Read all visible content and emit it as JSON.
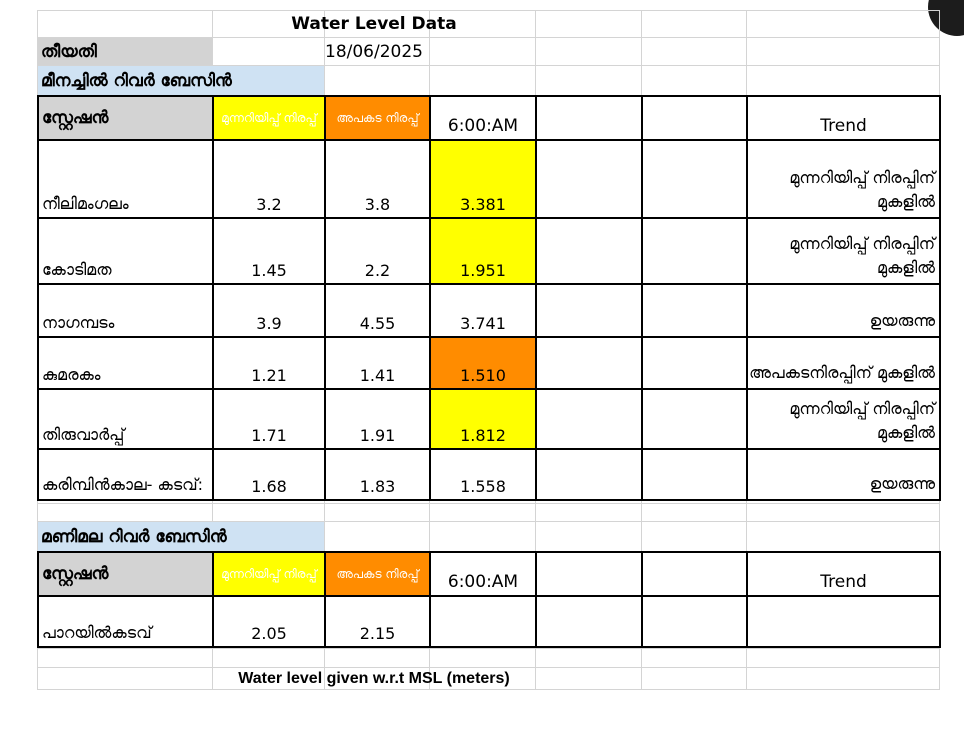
{
  "title": "Water Level Data",
  "date_label": "തീയതി",
  "date_value": "18/06/2025",
  "basin1": {
    "name": "മീനച്ചിൽ റിവർ ബേസിൻ",
    "headers": {
      "station": "സ്റ്റേഷൻ",
      "warning": "മുന്നറിയിപ്പ് നിരപ്പ്",
      "danger": "അപകട നിരപ്പ്",
      "time": "6:00:AM",
      "trend": "Trend"
    },
    "rows": [
      {
        "station": "നീലിമംഗലം",
        "warning": "3.2",
        "danger": "3.8",
        "level": "3.381",
        "level_status": "warning",
        "trend": "മുന്നറിയിപ്പ് നിരപ്പിന് മുകളിൽ"
      },
      {
        "station": "കോടിമത",
        "warning": "1.45",
        "danger": "2.2",
        "level": "1.951",
        "level_status": "warning",
        "trend": "മുന്നറിയിപ്പ് നിരപ്പിന് മുകളിൽ"
      },
      {
        "station": "നാഗമ്പടം",
        "warning": "3.9",
        "danger": "4.55",
        "level": "3.741",
        "level_status": "normal",
        "trend": "ഉയരുന്നു"
      },
      {
        "station": "കുമരകം",
        "warning": "1.21",
        "danger": "1.41",
        "level": "1.510",
        "level_status": "danger",
        "trend": "അപകടനിരപ്പിന് മുകളിൽ"
      },
      {
        "station": "തിരുവാർപ്പ്",
        "warning": "1.71",
        "danger": "1.91",
        "level": "1.812",
        "level_status": "warning",
        "trend": "മുന്നറിയിപ്പ് നിരപ്പിന് മുകളിൽ"
      },
      {
        "station": "കരിമ്പിൻകാല- കടവ്:",
        "warning": "1.68",
        "danger": "1.83",
        "level": "1.558",
        "level_status": "normal",
        "trend": "ഉയരുന്നു"
      }
    ]
  },
  "basin2": {
    "name": "മണിമല റിവർ ബേസിൻ",
    "headers": {
      "station": "സ്റ്റേഷൻ",
      "warning": "മുന്നറിയിപ്പ് നിരപ്പ്",
      "danger": "അപകട നിരപ്പ്",
      "time": "6:00:AM",
      "trend": "Trend"
    },
    "rows": [
      {
        "station": "പാറയിൽകടവ്",
        "warning": "2.05",
        "danger": "2.15",
        "level": "",
        "level_status": "normal",
        "trend": ""
      }
    ]
  },
  "footer_note": "Water level given w.r.t MSL (meters)",
  "colors": {
    "warning": "#ffff00",
    "danger": "#ff8c00",
    "header_gray": "#d3d3d3",
    "basin_blue": "#cfe2f3",
    "grid": "#d4d4d4"
  }
}
